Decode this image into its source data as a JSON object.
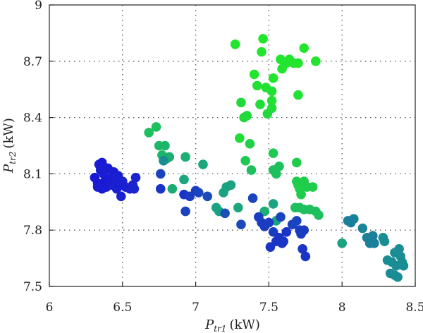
{
  "chart_data": {
    "type": "scatter",
    "title": "",
    "xlabel": {
      "symbol": "P",
      "subscript": "tr1",
      "unit": "(kW)"
    },
    "ylabel": {
      "symbol": "P",
      "subscript": "tr2",
      "unit": "(kW)"
    },
    "xlim": [
      6,
      8.5
    ],
    "ylim": [
      7.5,
      9
    ],
    "xticks": [
      "6",
      "6.5",
      "7",
      "7.5",
      "8",
      "8.5"
    ],
    "yticks": [
      "7.5",
      "7.8",
      "8.1",
      "8.4",
      "8.7",
      "9"
    ],
    "grid": "dotted",
    "legend": "none",
    "colormap": {
      "low": "#1a14d8",
      "mid": "#1a9a8c",
      "high": "#22ee22"
    },
    "points": [
      [
        6.31,
        8.08,
        0.02
      ],
      [
        6.33,
        8.05,
        0.02
      ],
      [
        6.34,
        8.15,
        0.02
      ],
      [
        6.36,
        8.16,
        0.02
      ],
      [
        6.35,
        8.12,
        0.03
      ],
      [
        6.37,
        8.1,
        0.03
      ],
      [
        6.38,
        8.06,
        0.02
      ],
      [
        6.39,
        8.03,
        0.03
      ],
      [
        6.4,
        8.13,
        0.03
      ],
      [
        6.42,
        8.08,
        0.03
      ],
      [
        6.43,
        8.04,
        0.04
      ],
      [
        6.44,
        8.11,
        0.03
      ],
      [
        6.45,
        8.07,
        0.04
      ],
      [
        6.46,
        8.02,
        0.04
      ],
      [
        6.47,
        8.09,
        0.04
      ],
      [
        6.48,
        8.05,
        0.04
      ],
      [
        6.49,
        7.98,
        0.05
      ],
      [
        6.5,
        8.06,
        0.05
      ],
      [
        6.52,
        8.03,
        0.05
      ],
      [
        6.55,
        8.02,
        0.05
      ],
      [
        6.57,
        8.04,
        0.06
      ],
      [
        6.58,
        8.02,
        0.06
      ],
      [
        6.59,
        8.08,
        0.06
      ],
      [
        6.36,
        8.02,
        0.03
      ],
      [
        6.33,
        8.03,
        0.03
      ],
      [
        6.68,
        8.32,
        0.72
      ],
      [
        6.73,
        8.35,
        0.72
      ],
      [
        6.75,
        8.25,
        0.68
      ],
      [
        6.77,
        8.2,
        0.66
      ],
      [
        6.79,
        8.25,
        0.66
      ],
      [
        6.8,
        8.18,
        0.62
      ],
      [
        6.82,
        8.19,
        0.62
      ],
      [
        6.84,
        8.02,
        0.6
      ],
      [
        6.93,
        8.19,
        0.62
      ],
      [
        6.92,
        8.07,
        0.58
      ],
      [
        7.05,
        8.15,
        0.58
      ],
      [
        6.78,
        8.17,
        0.45
      ],
      [
        6.76,
        8.1,
        0.18
      ],
      [
        6.76,
        8.02,
        0.12
      ],
      [
        6.92,
        7.99,
        0.12
      ],
      [
        6.96,
        7.98,
        0.15
      ],
      [
        6.93,
        7.9,
        0.18
      ],
      [
        7.0,
        8.01,
        0.15
      ],
      [
        7.02,
        8.0,
        0.18
      ],
      [
        7.08,
        7.98,
        0.2
      ],
      [
        7.14,
        7.92,
        0.55
      ],
      [
        7.16,
        7.9,
        0.55
      ],
      [
        7.19,
        8.0,
        0.55
      ],
      [
        7.21,
        8.03,
        0.55
      ],
      [
        7.24,
        8.04,
        0.55
      ],
      [
        7.29,
        7.92,
        0.58
      ],
      [
        7.2,
        7.89,
        0.22
      ],
      [
        7.27,
        8.79,
        0.95
      ],
      [
        7.3,
        8.29,
        0.9
      ],
      [
        7.31,
        8.48,
        0.88
      ],
      [
        7.33,
        8.4,
        0.88
      ],
      [
        7.34,
        8.17,
        0.78
      ],
      [
        7.35,
        8.41,
        0.88
      ],
      [
        7.37,
        8.26,
        0.82
      ],
      [
        7.38,
        8.12,
        0.72
      ],
      [
        7.4,
        8.63,
        0.95
      ],
      [
        7.42,
        8.57,
        0.92
      ],
      [
        7.44,
        8.47,
        0.9
      ],
      [
        7.45,
        8.75,
        0.95
      ],
      [
        7.46,
        8.82,
        0.95
      ],
      [
        7.48,
        8.56,
        0.92
      ],
      [
        7.49,
        8.42,
        0.88
      ],
      [
        7.52,
        8.54,
        0.92
      ],
      [
        7.52,
        8.49,
        0.92
      ],
      [
        7.52,
        8.45,
        0.9
      ],
      [
        7.53,
        8.61,
        0.95
      ],
      [
        7.53,
        8.21,
        0.78
      ],
      [
        7.53,
        8.12,
        0.72
      ],
      [
        7.55,
        8.1,
        0.72
      ],
      [
        7.57,
        8.14,
        0.72
      ],
      [
        7.58,
        8.71,
        0.95
      ],
      [
        7.59,
        8.66,
        0.95
      ],
      [
        7.62,
        8.69,
        0.95
      ],
      [
        7.64,
        8.71,
        0.95
      ],
      [
        7.67,
        8.69,
        0.95
      ],
      [
        7.7,
        8.69,
        0.95
      ],
      [
        7.7,
        8.52,
        0.92
      ],
      [
        7.74,
        8.77,
        0.95
      ],
      [
        7.82,
        8.7,
        0.95
      ],
      [
        7.69,
        8.16,
        0.8
      ],
      [
        7.69,
        8.06,
        0.8
      ],
      [
        7.7,
        8.04,
        0.8
      ],
      [
        7.71,
        8.02,
        0.82
      ],
      [
        7.72,
        7.99,
        0.8
      ],
      [
        7.74,
        8.06,
        0.8
      ],
      [
        7.76,
        8.03,
        0.8
      ],
      [
        7.8,
        8.03,
        0.8
      ],
      [
        7.68,
        7.92,
        0.72
      ],
      [
        7.71,
        7.92,
        0.72
      ],
      [
        7.74,
        7.91,
        0.72
      ],
      [
        7.78,
        7.91,
        0.72
      ],
      [
        7.82,
        7.9,
        0.72
      ],
      [
        7.84,
        7.88,
        0.72
      ],
      [
        7.47,
        7.9,
        0.62
      ],
      [
        7.55,
        7.85,
        0.55
      ],
      [
        7.53,
        7.94,
        0.55
      ],
      [
        7.31,
        7.83,
        0.2
      ],
      [
        7.39,
        7.97,
        0.18
      ],
      [
        7.43,
        7.87,
        0.15
      ],
      [
        7.45,
        7.84,
        0.15
      ],
      [
        7.47,
        7.82,
        0.15
      ],
      [
        7.5,
        7.84,
        0.15
      ],
      [
        7.53,
        7.79,
        0.15
      ],
      [
        7.51,
        7.71,
        0.12
      ],
      [
        7.55,
        7.74,
        0.12
      ],
      [
        7.57,
        7.76,
        0.12
      ],
      [
        7.59,
        7.73,
        0.12
      ],
      [
        7.6,
        7.74,
        0.12
      ],
      [
        7.62,
        7.79,
        0.12
      ],
      [
        7.58,
        7.87,
        0.18
      ],
      [
        7.66,
        7.83,
        0.18
      ],
      [
        7.69,
        7.85,
        0.18
      ],
      [
        7.71,
        7.8,
        0.15
      ],
      [
        7.72,
        7.78,
        0.15
      ],
      [
        7.74,
        7.8,
        0.15
      ],
      [
        7.73,
        7.7,
        0.12
      ],
      [
        7.75,
        7.66,
        0.12
      ],
      [
        8.0,
        7.73,
        0.55
      ],
      [
        8.04,
        7.85,
        0.4
      ],
      [
        8.06,
        7.84,
        0.4
      ],
      [
        8.08,
        7.86,
        0.4
      ],
      [
        8.14,
        7.81,
        0.42
      ],
      [
        8.17,
        7.76,
        0.4
      ],
      [
        8.19,
        7.73,
        0.4
      ],
      [
        8.21,
        7.77,
        0.4
      ],
      [
        8.22,
        7.73,
        0.4
      ],
      [
        8.28,
        7.76,
        0.45
      ],
      [
        8.29,
        7.74,
        0.45
      ],
      [
        8.31,
        7.64,
        0.45
      ],
      [
        8.34,
        7.63,
        0.45
      ],
      [
        8.36,
        7.68,
        0.45
      ],
      [
        8.37,
        7.61,
        0.45
      ],
      [
        8.39,
        7.7,
        0.45
      ],
      [
        8.4,
        7.66,
        0.45
      ],
      [
        8.41,
        7.63,
        0.45
      ],
      [
        8.42,
        7.61,
        0.45
      ],
      [
        8.33,
        7.57,
        0.45
      ],
      [
        8.36,
        7.56,
        0.45
      ],
      [
        8.38,
        7.55,
        0.45
      ]
    ]
  }
}
